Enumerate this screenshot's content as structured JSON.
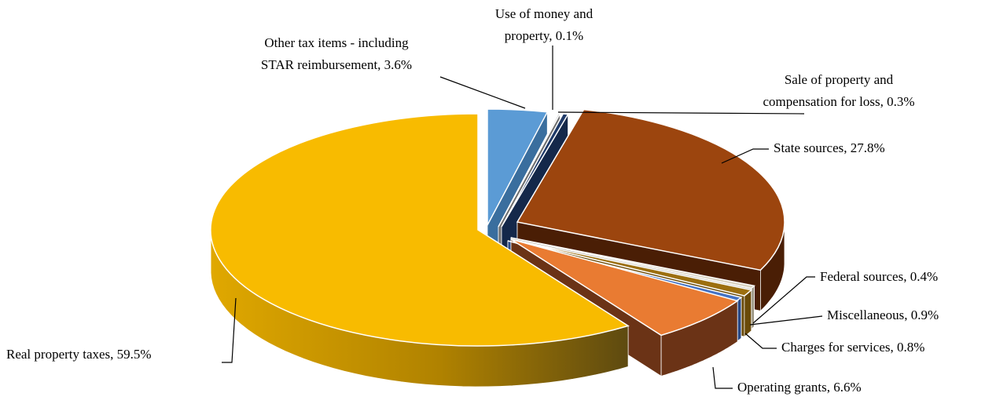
{
  "chart_data": {
    "type": "pie",
    "title": "",
    "style": "3d-exploded",
    "slices": [
      {
        "label": "Real property taxes, 59.5%",
        "value": 59.5,
        "color": "#F8BB00",
        "side": "#C48F00"
      },
      {
        "label_lines": [
          "Other tax items - including",
          "STAR reimbursement, 3.6%"
        ],
        "value": 3.6,
        "color": "#5B9BD5",
        "side": "#3A6E9E"
      },
      {
        "label_lines": [
          "Use of money and",
          "property, 0.1%"
        ],
        "value": 0.1,
        "color": "#A5A5A5",
        "side": "#6E6E6E"
      },
      {
        "label_lines": [
          "Sale of property and",
          "compensation for loss, 0.3%"
        ],
        "value": 0.3,
        "color": "#1F3A68",
        "side": "#14284A"
      },
      {
        "label": "State sources, 27.8%",
        "value": 27.8,
        "color": "#9C450E",
        "side": "#4A1E05"
      },
      {
        "label": "Federal sources, 0.4%",
        "value": 0.4,
        "color": "#D9D2C0",
        "side": "#9A9482"
      },
      {
        "label": "Miscellaneous, 0.9%",
        "value": 0.9,
        "color": "#9C6F10",
        "side": "#6A4A08"
      },
      {
        "label": "Charges for services, 0.8%",
        "value": 0.8,
        "color": "#4472C4",
        "side": "#2A4A86"
      },
      {
        "label": "Operating grants, 6.6%",
        "value": 6.6,
        "color": "#E97B32",
        "side": "#6B3316"
      }
    ]
  }
}
